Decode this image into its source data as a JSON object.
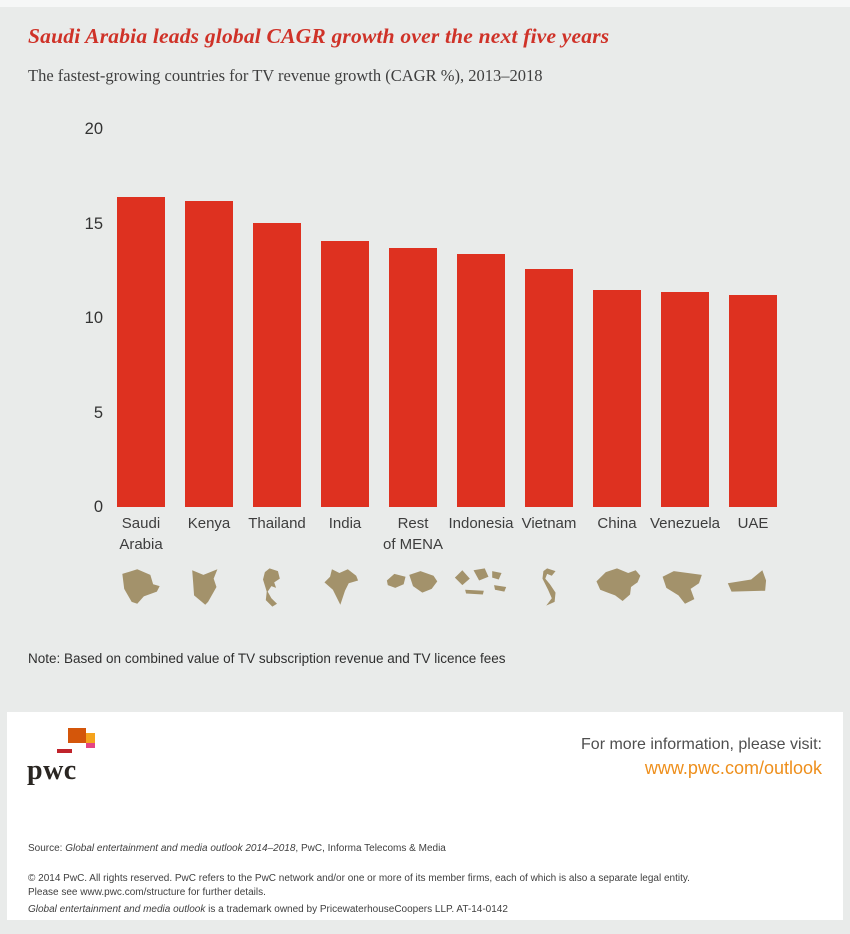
{
  "page": {
    "title": "Saudi Arabia leads global CAGR growth over the next five years",
    "subtitle": "The fastest-growing countries for TV revenue growth (CAGR %), 2013–2018",
    "note": "Note: Based on combined value of TV subscription revenue and TV licence fees"
  },
  "chart_data": {
    "type": "bar",
    "title": "Saudi Arabia leads global CAGR growth over the next five years",
    "subtitle": "The fastest-growing countries for TV revenue growth (CAGR %), 2013–2018",
    "categories": [
      "Saudi Arabia",
      "Kenya",
      "Thailand",
      "India",
      "Rest of MENA",
      "Indonesia",
      "Vietnam",
      "China",
      "Venezuela",
      "UAE"
    ],
    "category_lines": [
      [
        "Saudi",
        "Arabia"
      ],
      [
        "Kenya"
      ],
      [
        "Thailand"
      ],
      [
        "India"
      ],
      [
        "Rest",
        "of MENA"
      ],
      [
        "Indonesia"
      ],
      [
        "Vietnam"
      ],
      [
        "China"
      ],
      [
        "Venezuela"
      ],
      [
        "UAE"
      ]
    ],
    "values": [
      16.4,
      16.2,
      15.0,
      14.1,
      13.7,
      13.4,
      12.6,
      11.5,
      11.4,
      11.2
    ],
    "unit": "CAGR %",
    "xlabel": "",
    "ylabel": "",
    "ylim": [
      0,
      20
    ],
    "yticks": [
      0,
      5,
      10,
      15,
      20
    ],
    "grid": "off",
    "legend": "none",
    "bar_color": "#de3120",
    "icon_color": "#a3926b",
    "icons": [
      "saudi-arabia-map-icon",
      "kenya-map-icon",
      "thailand-map-icon",
      "india-map-icon",
      "rest-of-mena-map-icon",
      "indonesia-map-icon",
      "vietnam-map-icon",
      "china-map-icon",
      "venezuela-map-icon",
      "uae-map-icon"
    ]
  },
  "footer": {
    "logo_text": "pwc",
    "logo_colors": {
      "block_main": "#d4560a",
      "block_yellow": "#f5a31c",
      "block_pink": "#e54483",
      "block_red": "#c0232b"
    },
    "info_label": "For more information, please visit:",
    "info_link": "www.pwc.com/outlook",
    "link_color": "#ee8f1c",
    "source_prefix": "Source: ",
    "source_italic": "Global entertainment and media outlook 2014–2018",
    "source_suffix": ", PwC, Informa Telecoms & Media",
    "copyright": "© 2014 PwC. All rights reserved. PwC refers to the PwC network and/or one or more of its member firms, each of which is also a separate legal entity. Please see www.pwc.com/structure for further details.",
    "trademark_italic": "Global entertainment and media outlook",
    "trademark_suffix": " is a trademark owned by PricewaterhouseCoopers LLP. AT-14-0142"
  }
}
